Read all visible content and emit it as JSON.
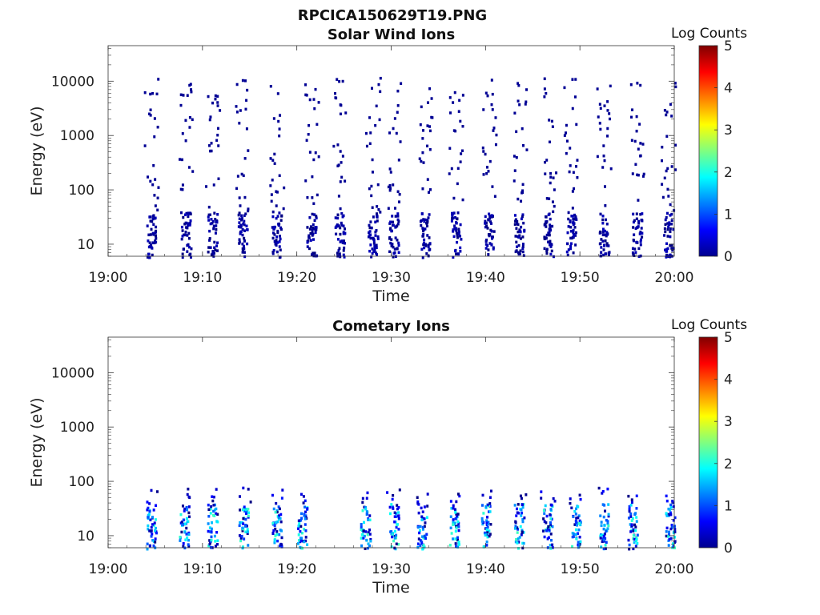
{
  "figure": {
    "title": "RPCICA150629T19.PNG"
  },
  "chart_data": [
    {
      "type": "heatmap",
      "title": "Solar Wind Ions",
      "xlabel": "Time",
      "ylabel": "Energy (eV)",
      "x_ticks": [
        "19:00",
        "19:10",
        "19:20",
        "19:30",
        "19:40",
        "19:50",
        "20:00"
      ],
      "y_ticks": [
        "10",
        "100",
        "1000",
        "10000"
      ],
      "y_scale": "log",
      "ylim": [
        6,
        45000
      ],
      "xlim": [
        "19:00",
        "20:00"
      ],
      "colorbar": {
        "label": "Log Counts",
        "ticks": [
          "0",
          "1",
          "2",
          "3",
          "4",
          "5"
        ],
        "range": [
          0,
          5
        ],
        "colormap": "jet"
      },
      "bursts_minutes": [
        4.5,
        8.2,
        11.0,
        14.2,
        17.8,
        21.5,
        24.5,
        28.0,
        30.2,
        33.5,
        36.8,
        40.3,
        43.5,
        46.6,
        49.0,
        52.5,
        56.0,
        59.3
      ],
      "typical_log_counts": [
        0,
        0.3
      ],
      "energy_band_eV": [
        6,
        12000
      ]
    },
    {
      "type": "heatmap",
      "title": "Cometary Ions",
      "xlabel": "Time",
      "ylabel": "Energy (eV)",
      "x_ticks": [
        "19:00",
        "19:10",
        "19:20",
        "19:30",
        "19:40",
        "19:50",
        "20:00"
      ],
      "y_ticks": [
        "10",
        "100",
        "1000",
        "10000"
      ],
      "y_scale": "log",
      "ylim": [
        6,
        45000
      ],
      "xlim": [
        "19:00",
        "20:00"
      ],
      "colorbar": {
        "label": "Log Counts",
        "ticks": [
          "0",
          "1",
          "2",
          "3",
          "4",
          "5"
        ],
        "range": [
          0,
          5
        ],
        "colormap": "jet"
      },
      "bursts_minutes": [
        4.5,
        8.0,
        11.0,
        14.3,
        17.8,
        20.5,
        27.2,
        30.2,
        33.2,
        36.6,
        40.0,
        43.5,
        46.5,
        49.5,
        52.5,
        55.5,
        59.5
      ],
      "typical_log_counts": [
        0,
        2.2
      ],
      "energy_band_eV": [
        6,
        80
      ]
    }
  ]
}
